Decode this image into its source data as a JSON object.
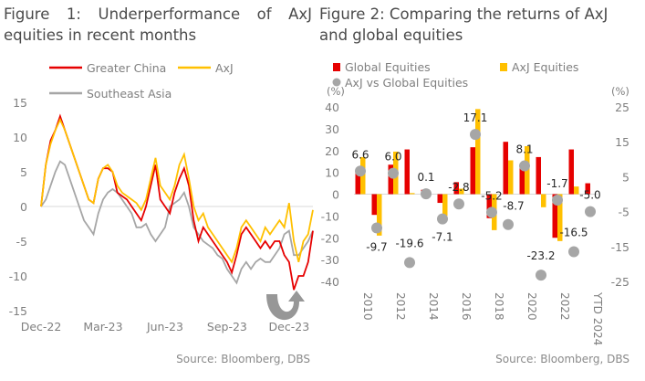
{
  "colors": {
    "greater_china": "#e60000",
    "axj": "#ffc000",
    "southeast_asia": "#a6a6a6",
    "global": "#e60000",
    "axj_equities": "#ffc000",
    "diff": "#a6a6a6"
  },
  "chart_data": [
    {
      "type": "line",
      "title": "Figure 1: Underperformance of AxJ equities in recent months",
      "source": "Source: Bloomberg, DBS",
      "ylim": [
        -15,
        15
      ],
      "yticks": [
        "15",
        "10",
        "5",
        "0",
        "-5",
        "-10",
        "-15"
      ],
      "xtick_labels": [
        "Dec-22",
        "Mar-23",
        "Jun-23",
        "Sep-23",
        "Dec-23"
      ],
      "xtick_dates": [
        "2022-12-30",
        "2023-03-31",
        "2023-06-30",
        "2023-09-29",
        "2023-12-29"
      ],
      "legend_placement": "top",
      "x": [
        "2022-12-30",
        "2023-01-06",
        "2023-01-13",
        "2023-01-20",
        "2023-01-27",
        "2023-02-03",
        "2023-02-10",
        "2023-02-17",
        "2023-02-24",
        "2023-03-03",
        "2023-03-10",
        "2023-03-17",
        "2023-03-24",
        "2023-03-31",
        "2023-04-07",
        "2023-04-14",
        "2023-04-21",
        "2023-04-28",
        "2023-05-05",
        "2023-05-12",
        "2023-05-19",
        "2023-05-26",
        "2023-06-02",
        "2023-06-09",
        "2023-06-16",
        "2023-06-23",
        "2023-06-30",
        "2023-07-07",
        "2023-07-14",
        "2023-07-21",
        "2023-07-28",
        "2023-08-04",
        "2023-08-11",
        "2023-08-18",
        "2023-08-25",
        "2023-09-01",
        "2023-09-08",
        "2023-09-15",
        "2023-09-22",
        "2023-09-29",
        "2023-10-06",
        "2023-10-13",
        "2023-10-20",
        "2023-10-27",
        "2023-11-03",
        "2023-11-10",
        "2023-11-17",
        "2023-11-24",
        "2023-12-01",
        "2023-12-08",
        "2023-12-15",
        "2023-12-22",
        "2023-12-29",
        "2024-01-05",
        "2024-01-12",
        "2024-01-19",
        "2024-01-26",
        "2024-02-02"
      ],
      "series": [
        {
          "name": "Greater China",
          "values": [
            0,
            6,
            9.5,
            11,
            13,
            11,
            9,
            7,
            5,
            3,
            1,
            0.5,
            4,
            5.5,
            5.5,
            5,
            2,
            1.5,
            1,
            0,
            -1,
            -2,
            0,
            3,
            6,
            1,
            0,
            -1,
            2,
            4,
            5.5,
            3,
            -2,
            -5,
            -3,
            -4,
            -5,
            -6,
            -7,
            -8,
            -9.5,
            -7,
            -4,
            -3,
            -4,
            -5,
            -6,
            -5,
            -6,
            -5,
            -5,
            -7,
            -8,
            -12,
            -10,
            -10,
            -8,
            -3.5
          ]
        },
        {
          "name": "AxJ",
          "values": [
            0,
            6,
            9,
            11,
            12.5,
            11,
            9,
            7,
            5,
            3,
            1,
            0.5,
            4,
            5.5,
            6,
            5,
            3,
            2,
            1.5,
            1,
            0.5,
            -0.5,
            1,
            4,
            7,
            3,
            2,
            1,
            3,
            6,
            7.5,
            4,
            0,
            -2,
            -1,
            -3,
            -4,
            -5,
            -6,
            -7,
            -8,
            -6,
            -3,
            -2,
            -3,
            -4,
            -5,
            -3,
            -4,
            -3,
            -2,
            -3,
            0.5,
            -5,
            -8,
            -5,
            -4,
            -0.5
          ]
        },
        {
          "name": "Southeast Asia",
          "values": [
            0,
            1,
            3,
            5,
            6.5,
            6,
            4,
            2,
            0,
            -2,
            -3,
            -4,
            -1,
            1,
            2,
            2.5,
            2,
            1,
            0,
            -1,
            -3,
            -3,
            -2.5,
            -4,
            -5,
            -4,
            -3,
            0,
            0.5,
            1,
            2,
            0,
            -3,
            -4,
            -5,
            -5.5,
            -6,
            -7,
            -7.5,
            -9,
            -10,
            -11,
            -9,
            -8,
            -9,
            -8,
            -7.5,
            -8,
            -8,
            -7,
            -6,
            -4,
            -3.5,
            -7,
            -7,
            -6,
            -5,
            -3.5
          ]
        }
      ]
    },
    {
      "type": "bar",
      "title": "Figure 2: Comparing the returns of AxJ and global equities",
      "source": "Source: Bloomberg, DBS",
      "ylabel_left": "(%)",
      "ylabel_right": "(%)",
      "ylim_left": [
        -40,
        40
      ],
      "ylim_right": [
        -25,
        25
      ],
      "yticks_left": [
        "40",
        "30",
        "20",
        "10",
        "0",
        "-10",
        "-20",
        "-30",
        "-40"
      ],
      "yticks_right": [
        "25",
        "15",
        "5",
        "-5",
        "-15",
        "-25"
      ],
      "categories": [
        "2010",
        "2011",
        "2012",
        "2013",
        "2014",
        "2015",
        "2016",
        "2017",
        "2018",
        "2019",
        "2020",
        "2021",
        "2022",
        "2023",
        "YTD 2024"
      ],
      "xtick_labels": [
        "2010",
        "",
        "2012",
        "",
        "2014",
        "",
        "2016",
        "",
        "2018",
        "",
        "2020",
        "",
        "2022",
        "",
        "YTD 2024"
      ],
      "legend_placement": "top",
      "series": [
        {
          "name": "Global Equities",
          "type": "bar",
          "axis": "left",
          "values": [
            10,
            -9.5,
            13.5,
            20.5,
            2,
            -4,
            5.5,
            21.5,
            -11,
            24,
            13,
            17,
            -20,
            20.5,
            5
          ]
        },
        {
          "name": "AxJ Equities",
          "type": "bar",
          "axis": "left",
          "values": [
            17,
            -19,
            19.5,
            0.5,
            0,
            -10,
            2.5,
            39,
            -16.5,
            15.5,
            22,
            -6,
            -21.5,
            3.5,
            0
          ]
        },
        {
          "name": "AxJ vs Global Equities",
          "type": "scatter",
          "axis": "right",
          "values": [
            6.6,
            -9.7,
            6.0,
            -19.6,
            0.1,
            -7.1,
            -2.8,
            17.1,
            -5.2,
            -8.7,
            8.1,
            -23.2,
            -1.7,
            -16.5,
            -5.0
          ],
          "labels": [
            "6.6",
            "-9.7",
            "6.0",
            "-19.6",
            "0.1",
            "-7.1",
            "-2.8",
            "17.1",
            "-5.2",
            "-8.7",
            "8.1",
            "-23.2",
            "-1.7",
            "-16.5",
            "-5.0"
          ]
        }
      ]
    }
  ]
}
